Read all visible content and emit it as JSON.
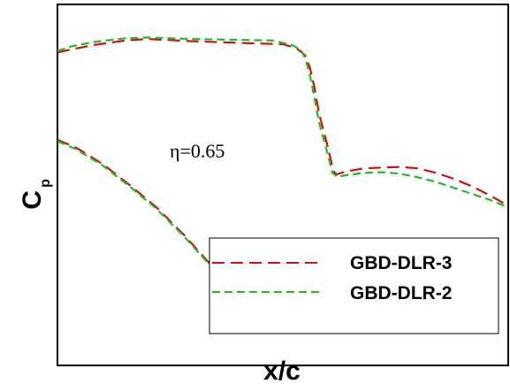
{
  "chart_data": {
    "type": "line",
    "xlabel": "x/c",
    "ylabel_main": "C",
    "ylabel_sub": "p",
    "annotation": "η=0.65",
    "xlim": [
      0,
      1
    ],
    "ylim": [
      -1.2,
      1.2
    ],
    "grid": false,
    "legend_placement": "bottom-right",
    "series": [
      {
        "name": "GBD-DLR-3",
        "color": "#cc1111",
        "dash": "long-dash",
        "segments": [
          {
            "x": [
              0,
              0.03,
              0.08,
              0.15,
              0.2,
              0.3,
              0.4,
              0.5,
              0.53,
              0.55,
              0.56,
              0.57,
              0.58,
              0.6,
              0.61,
              0.615,
              0.62,
              0.64,
              0.68,
              0.72,
              0.76,
              0.8,
              0.84,
              0.88,
              0.92,
              0.96,
              1.0
            ],
            "y": [
              0.88,
              0.9,
              0.93,
              0.96,
              0.97,
              0.955,
              0.945,
              0.935,
              0.91,
              0.86,
              0.78,
              0.65,
              0.48,
              0.25,
              0.12,
              0.08,
              0.07,
              0.09,
              0.11,
              0.115,
              0.12,
              0.11,
              0.08,
              0.04,
              -0.01,
              -0.07,
              -0.14
            ]
          },
          {
            "x": [
              0,
              0.04,
              0.1,
              0.16,
              0.22,
              0.28,
              0.34,
              0.38,
              0.41
            ],
            "y": [
              0.3,
              0.25,
              0.14,
              0.0,
              -0.15,
              -0.33,
              -0.53,
              -0.68,
              -0.8
            ]
          }
        ]
      },
      {
        "name": "GBD-DLR-2",
        "color": "#22bb22",
        "dash": "short-dash",
        "segments": [
          {
            "x": [
              0,
              0.03,
              0.08,
              0.15,
              0.2,
              0.3,
              0.4,
              0.48,
              0.52,
              0.54,
              0.55,
              0.56,
              0.57,
              0.58,
              0.6,
              0.61,
              0.62,
              0.64,
              0.68,
              0.72,
              0.76,
              0.8,
              0.84,
              0.88,
              0.92,
              0.96,
              1.0
            ],
            "y": [
              0.89,
              0.92,
              0.95,
              0.975,
              0.98,
              0.97,
              0.965,
              0.96,
              0.93,
              0.9,
              0.84,
              0.73,
              0.58,
              0.42,
              0.2,
              0.08,
              0.055,
              0.065,
              0.08,
              0.085,
              0.075,
              0.05,
              0.02,
              -0.02,
              -0.06,
              -0.1,
              -0.15
            ]
          },
          {
            "x": [
              0,
              0.04,
              0.1,
              0.16,
              0.22,
              0.28,
              0.34,
              0.38,
              0.41
            ],
            "y": [
              0.29,
              0.24,
              0.13,
              -0.01,
              -0.16,
              -0.34,
              -0.54,
              -0.69,
              -0.8
            ]
          }
        ]
      }
    ]
  }
}
